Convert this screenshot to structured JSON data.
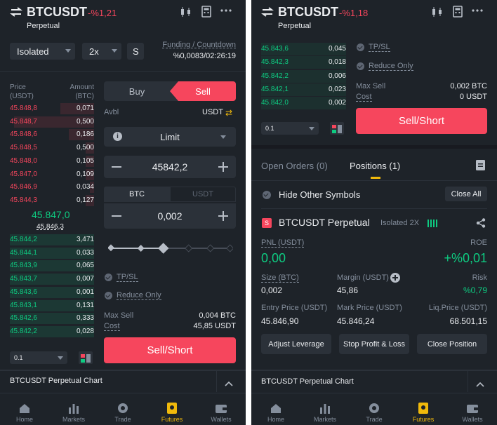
{
  "colors": {
    "red": "#f6465d",
    "green": "#0ecb81",
    "bg": "#1e2329",
    "panel": "#2b3139",
    "gold": "#f0b90b"
  },
  "left": {
    "symbol": "BTCUSDT",
    "change": "-%1,21",
    "sub": "Perpetual",
    "margin_mode": "Isolated",
    "leverage": "2x",
    "s_label": "S",
    "funding_label": "Funding / Countdown",
    "funding_value": "%0,0083/02:26:19",
    "ob_price_header": "Price\n(USDT)",
    "ob_amount_header": "Amount\n(BTC)",
    "asks": [
      {
        "price": "45.848,8",
        "amount": "0,071",
        "depth": 0.4
      },
      {
        "price": "45.848,7",
        "amount": "0,500",
        "depth": 0.95
      },
      {
        "price": "45.848,6",
        "amount": "0,186",
        "depth": 0.3
      },
      {
        "price": "45.848,5",
        "amount": "0,500",
        "depth": 0.1
      },
      {
        "price": "45.848,0",
        "amount": "0,105",
        "depth": 0.1
      },
      {
        "price": "45.847,0",
        "amount": "0,109",
        "depth": 0.1
      },
      {
        "price": "45.846,9",
        "amount": "0,034",
        "depth": 0.05
      },
      {
        "price": "45.844,3",
        "amount": "0,127",
        "depth": 0.1
      }
    ],
    "mid_price": "45.847,0",
    "mark_price": "45.846,3",
    "bids": [
      {
        "price": "45.844,2",
        "amount": "3,471",
        "depth": 1.0
      },
      {
        "price": "45.844,1",
        "amount": "0,033",
        "depth": 1.0
      },
      {
        "price": "45.843,9",
        "amount": "0,065",
        "depth": 1.0
      },
      {
        "price": "45.843,7",
        "amount": "0,007",
        "depth": 1.0
      },
      {
        "price": "45.843,6",
        "amount": "0,001",
        "depth": 1.0
      },
      {
        "price": "45.843,1",
        "amount": "0,131",
        "depth": 1.0
      },
      {
        "price": "45.842,6",
        "amount": "0,333",
        "depth": 1.0
      },
      {
        "price": "45.842,2",
        "amount": "0,028",
        "depth": 1.0
      }
    ],
    "precision": "0.1",
    "buy_tab": "Buy",
    "sell_tab": "Sell",
    "avbl_label": "Avbl",
    "avbl_unit": "USDT",
    "order_type": "Limit",
    "price_value": "45842,2",
    "unit_btc": "BTC",
    "unit_usdt": "USDT",
    "amount_value": "0,002",
    "tpsl": "TP/SL",
    "reduce_only": "Reduce Only",
    "max_sell_label": "Max Sell",
    "max_sell_value": "0,004 BTC",
    "cost_label": "Cost",
    "cost_value": "45,85 USDT",
    "submit": "Sell/Short",
    "chart_bar": "BTCUSDT Perpetual  Chart"
  },
  "right": {
    "symbol": "BTCUSDT",
    "change": "-%1,18",
    "sub": "Perpetual",
    "bids": [
      {
        "price": "45.843,6",
        "amount": "0,045"
      },
      {
        "price": "45.842,3",
        "amount": "0,018"
      },
      {
        "price": "45.842,2",
        "amount": "0,006"
      },
      {
        "price": "45.842,1",
        "amount": "0,023"
      },
      {
        "price": "45.842,0",
        "amount": "0,002"
      }
    ],
    "precision": "0.1",
    "tpsl": "TP/SL",
    "reduce_only": "Reduce Only",
    "max_sell_label": "Max Sell",
    "max_sell_value": "0,002 BTC",
    "cost_label": "Cost",
    "cost_value": "0 USDT",
    "submit": "Sell/Short",
    "tab_orders": "Open Orders (0)",
    "tab_positions": "Positions (1)",
    "hide_other": "Hide Other Symbols",
    "close_all": "Close All",
    "pos_badge": "S",
    "pos_symbol": "BTCUSDT Perpetual",
    "pos_mode": "Isolated 2X",
    "pnl_label": "PNL (USDT)",
    "pnl_value": "0,00",
    "roe_label": "ROE",
    "roe_value": "+%0,01",
    "size_label": "Size (BTC)",
    "size_value": "0,002",
    "margin_label": "Margin (USDT)",
    "margin_value": "45,86",
    "risk_label": "Risk",
    "risk_value": "%0,79",
    "entry_label": "Entry Price (USDT)",
    "entry_value": "45.846,90",
    "markp_label": "Mark Price (USDT)",
    "markp_value": "45.846,24",
    "liq_label": "Liq.Price (USDT)",
    "liq_value": "68.501,15",
    "btn_leverage": "Adjust Leverage",
    "btn_stop": "Stop Profit & Loss",
    "btn_close": "Close Position",
    "chart_bar": "BTCUSDT Perpetual  Chart"
  },
  "nav": [
    "Home",
    "Markets",
    "Trade",
    "Futures",
    "Wallets"
  ],
  "nav_active": "Futures"
}
